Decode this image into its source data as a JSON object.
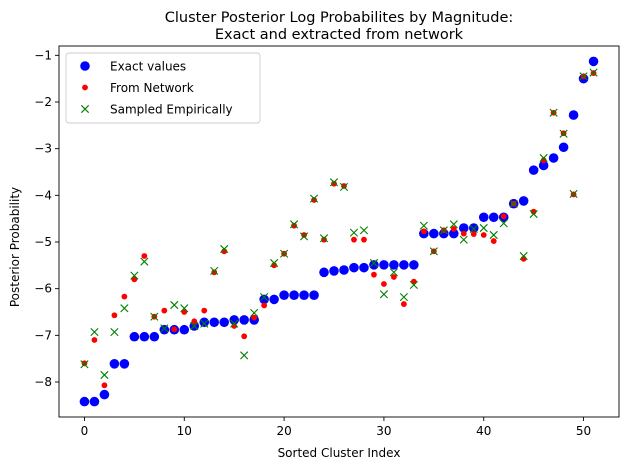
{
  "chart_data": {
    "type": "scatter",
    "title": [
      "Cluster Posterior Log Probabilites by Magnitude:",
      "Exact and extracted from network"
    ],
    "xlabel": "Sorted Cluster Index",
    "ylabel": "Posterior Probability",
    "xlim": [
      -2.55,
      53.55
    ],
    "ylim": [
      -8.75,
      -0.8
    ],
    "xticks": [
      0,
      10,
      20,
      30,
      40,
      50
    ],
    "yticks": [
      -8,
      -7,
      -6,
      -5,
      -4,
      -3,
      -2,
      -1
    ],
    "grid": false,
    "legend_position": "top-left",
    "series": [
      {
        "name": "Exact values",
        "marker": "circle-large",
        "color": "#0000ff",
        "x": [
          0,
          1,
          2,
          3,
          4,
          5,
          6,
          7,
          8,
          9,
          10,
          11,
          12,
          13,
          14,
          15,
          16,
          17,
          18,
          19,
          20,
          21,
          22,
          23,
          24,
          25,
          26,
          27,
          28,
          29,
          30,
          31,
          32,
          33,
          34,
          35,
          36,
          37,
          38,
          39,
          40,
          41,
          42,
          43,
          44,
          45,
          46,
          47,
          48,
          49,
          50,
          51
        ],
        "y": [
          -8.42,
          -8.42,
          -8.27,
          -7.61,
          -7.61,
          -7.03,
          -7.03,
          -7.03,
          -6.88,
          -6.88,
          -6.88,
          -6.8,
          -6.72,
          -6.72,
          -6.72,
          -6.67,
          -6.67,
          -6.67,
          -6.23,
          -6.23,
          -6.14,
          -6.14,
          -6.14,
          -6.14,
          -5.65,
          -5.62,
          -5.6,
          -5.55,
          -5.55,
          -5.49,
          -5.49,
          -5.49,
          -5.49,
          -5.49,
          -4.82,
          -4.82,
          -4.82,
          -4.82,
          -4.7,
          -4.7,
          -4.47,
          -4.47,
          -4.47,
          -4.18,
          -4.12,
          -3.46,
          -3.36,
          -3.2,
          -2.97,
          -2.28,
          -1.5,
          -1.13
        ]
      },
      {
        "name": "From Network",
        "marker": "circle-small",
        "color": "#ff0000",
        "x": [
          0,
          1,
          2,
          3,
          4,
          5,
          6,
          7,
          8,
          9,
          10,
          11,
          12,
          13,
          14,
          15,
          16,
          17,
          18,
          19,
          20,
          21,
          22,
          23,
          24,
          25,
          26,
          27,
          28,
          29,
          30,
          31,
          32,
          33,
          34,
          35,
          36,
          37,
          38,
          39,
          40,
          41,
          42,
          43,
          44,
          45,
          46,
          47,
          48,
          49,
          50,
          51
        ],
        "y": [
          -7.6,
          -7.1,
          -8.07,
          -6.57,
          -6.17,
          -5.8,
          -5.3,
          -6.6,
          -6.47,
          -6.87,
          -6.5,
          -6.7,
          -6.47,
          -5.65,
          -5.2,
          -6.8,
          -7.02,
          -6.62,
          -6.36,
          -5.5,
          -5.25,
          -4.65,
          -4.85,
          -4.1,
          -4.95,
          -3.75,
          -3.8,
          -4.95,
          -4.95,
          -5.7,
          -5.9,
          -5.75,
          -6.33,
          -5.85,
          -4.77,
          -5.2,
          -4.75,
          -4.72,
          -4.82,
          -4.83,
          -4.85,
          -4.98,
          -4.45,
          -4.18,
          -5.36,
          -4.35,
          -3.25,
          -2.23,
          -2.67,
          -3.98,
          -1.45,
          -1.38
        ]
      },
      {
        "name": "Sampled Empirically",
        "marker": "x",
        "color": "#008000",
        "x": [
          0,
          1,
          2,
          3,
          4,
          5,
          6,
          7,
          8,
          9,
          10,
          11,
          12,
          13,
          14,
          15,
          16,
          17,
          18,
          19,
          20,
          21,
          22,
          23,
          24,
          25,
          26,
          27,
          28,
          29,
          30,
          31,
          32,
          33,
          34,
          35,
          36,
          37,
          38,
          39,
          40,
          41,
          42,
          43,
          44,
          45,
          46,
          47,
          48,
          49,
          50,
          51
        ],
        "y": [
          -7.62,
          -6.93,
          -7.85,
          -6.93,
          -6.42,
          -5.72,
          -5.42,
          -6.6,
          -6.85,
          -6.35,
          -6.42,
          -6.8,
          -6.75,
          -5.62,
          -5.15,
          -6.75,
          -7.43,
          -6.52,
          -6.18,
          -5.45,
          -5.25,
          -4.62,
          -4.88,
          -4.07,
          -4.92,
          -3.72,
          -3.82,
          -4.8,
          -4.75,
          -5.45,
          -6.12,
          -5.65,
          -6.18,
          -5.92,
          -4.65,
          -5.2,
          -4.75,
          -4.62,
          -4.95,
          -4.72,
          -4.7,
          -4.85,
          -4.6,
          -4.18,
          -5.3,
          -4.4,
          -3.2,
          -2.23,
          -2.68,
          -3.97,
          -1.45,
          -1.37
        ]
      }
    ]
  }
}
